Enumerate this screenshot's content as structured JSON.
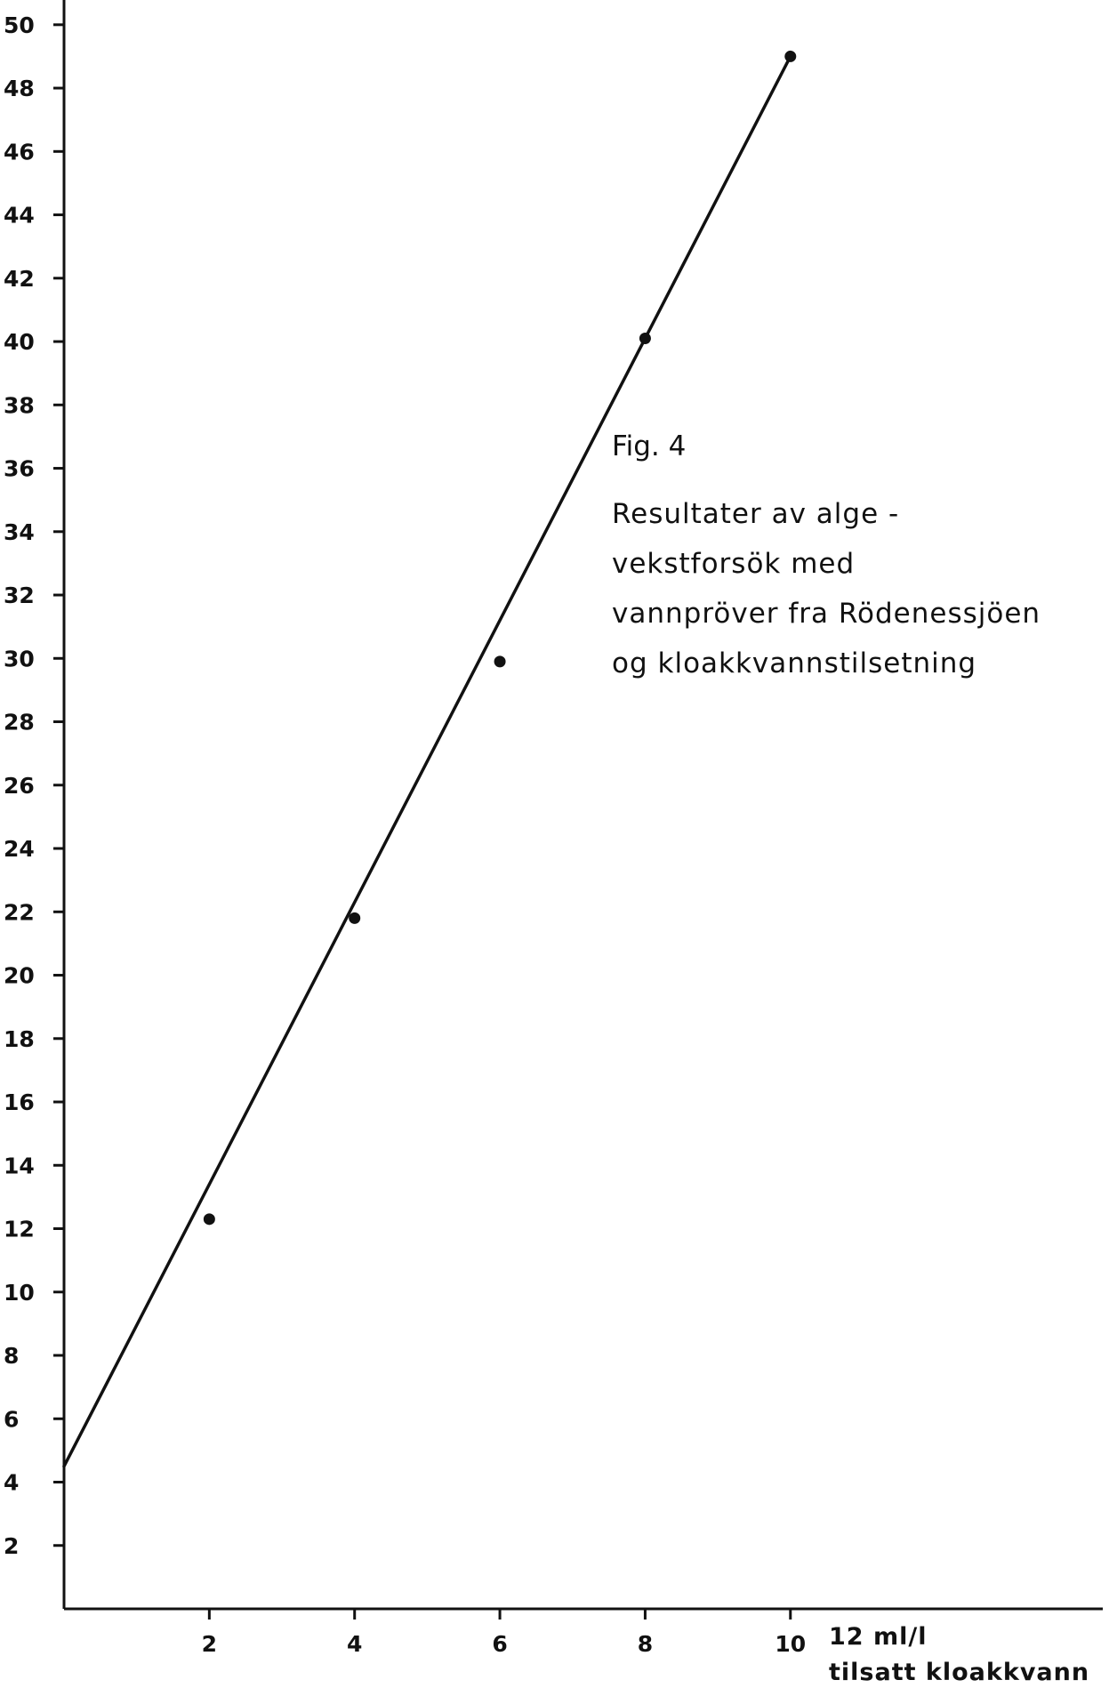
{
  "chart_data": {
    "type": "scatter",
    "title": "Fig. 4",
    "caption_lines": [
      "Resultater av alge -",
      "vekstforsök  med",
      "vannpröver  fra  Rödenessjöen",
      "og  kloakkvannstilsetning"
    ],
    "xlabel": "tilsatt kloakkvann",
    "x_unit_label": "12  ml/l",
    "ylabel": "",
    "xlim": [
      0,
      14.3
    ],
    "ylim": [
      0,
      50.5
    ],
    "x_ticks": [
      2,
      4,
      6,
      8,
      10
    ],
    "x_tick_labels": [
      "2",
      "4",
      "6",
      "8",
      "10"
    ],
    "y_ticks": [
      2,
      4,
      6,
      8,
      10,
      12,
      14,
      16,
      18,
      20,
      22,
      24,
      26,
      28,
      30,
      32,
      34,
      36,
      38,
      40,
      42,
      44,
      46,
      48,
      50
    ],
    "y_tick_labels": [
      "2",
      "4",
      "6",
      "8",
      "10",
      "12",
      "14",
      "16",
      "18",
      "20",
      "22",
      "24",
      "26",
      "28",
      "30",
      "32",
      "34",
      "36",
      "38",
      "40",
      "42",
      "44",
      "46",
      "48",
      "50"
    ],
    "series": [
      {
        "points": [
          {
            "x": 2,
            "y": 12.3
          },
          {
            "x": 4,
            "y": 21.8
          },
          {
            "x": 6,
            "y": 29.9
          },
          {
            "x": 8,
            "y": 40.1
          },
          {
            "x": 10,
            "y": 49.0
          }
        ]
      }
    ],
    "fit_line": {
      "x": [
        0,
        10
      ],
      "y": [
        4.5,
        49.0
      ]
    },
    "grid": false,
    "legend": "none",
    "colors": {
      "ink": "#111111",
      "background": "#ffffff"
    }
  }
}
